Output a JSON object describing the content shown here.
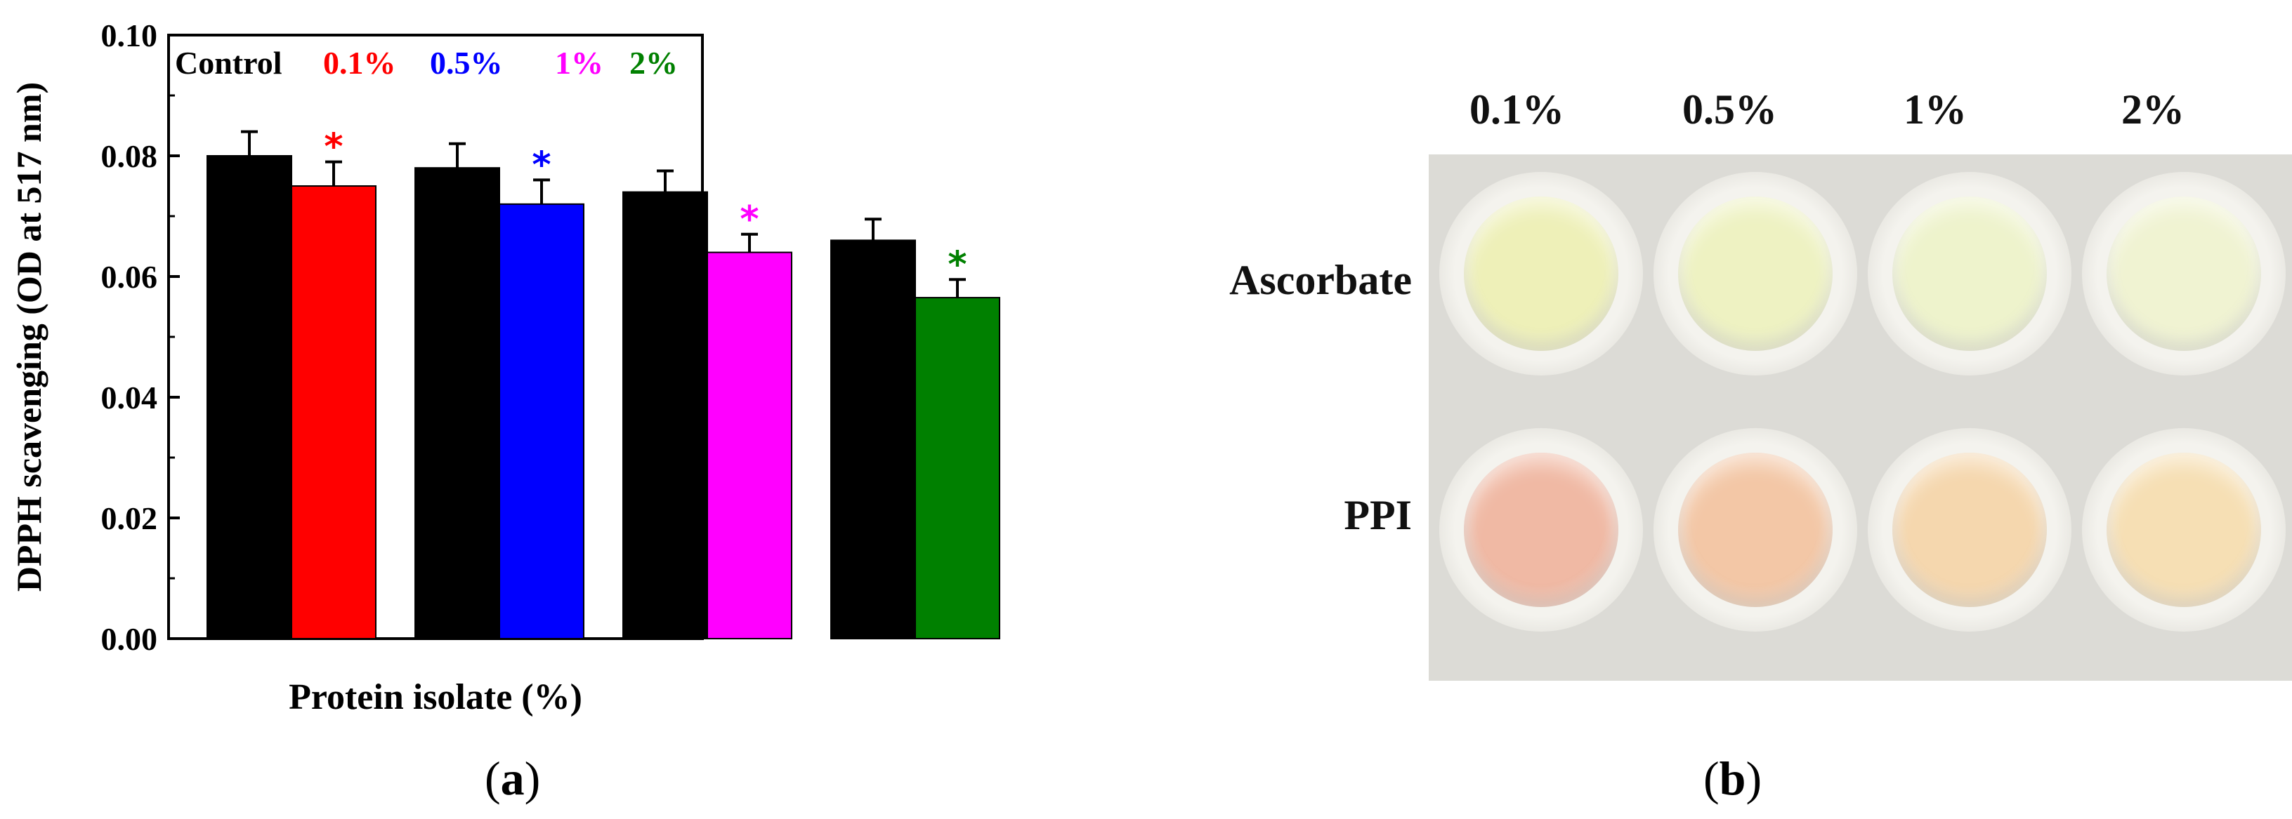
{
  "chart_data": {
    "type": "bar",
    "ylabel": "DPPH scavenging (OD at 517 nm)",
    "xlabel": "Protein isolate (%)",
    "ylim": [
      0,
      0.1
    ],
    "yticks": [
      "0.00",
      "0.02",
      "0.04",
      "0.06",
      "0.08",
      "0.10"
    ],
    "ytick_values": [
      0,
      0.02,
      0.04,
      0.06,
      0.08,
      0.1
    ],
    "legend_placement": "top-left",
    "legend": [
      {
        "label": "Control",
        "color": "#000000"
      },
      {
        "label": "0.1%",
        "color": "#ff0000"
      },
      {
        "label": "0.5%",
        "color": "#0000ff"
      },
      {
        "label": "1%",
        "color": "#ff00ff"
      },
      {
        "label": "2%",
        "color": "#008000"
      }
    ],
    "groups": [
      {
        "control": 0.08,
        "control_err": 0.004,
        "treated": 0.075,
        "treated_err": 0.004,
        "color": "#ff0000",
        "marker": "*"
      },
      {
        "control": 0.078,
        "control_err": 0.004,
        "treated": 0.072,
        "treated_err": 0.004,
        "color": "#0000ff",
        "marker": "*"
      },
      {
        "control": 0.074,
        "control_err": 0.0035,
        "treated": 0.064,
        "treated_err": 0.003,
        "color": "#ff00ff",
        "marker": "*"
      },
      {
        "control": 0.066,
        "control_err": 0.0035,
        "treated": 0.0565,
        "treated_err": 0.003,
        "color": "#008000",
        "marker": "*"
      }
    ]
  },
  "captions": {
    "a": {
      "open": "(",
      "letter": "a",
      "close": ")"
    },
    "b": {
      "open": "(",
      "letter": "b",
      "close": ")"
    }
  },
  "photo": {
    "columns": [
      "0.1%",
      "0.5%",
      "1%",
      "2%"
    ],
    "rows": [
      "Ascorbate",
      "PPI"
    ],
    "ascorbate_colors": [
      "#eef0b8",
      "#eef2c2",
      "#eef3cc",
      "#f0f3d2"
    ],
    "ppi_colors": [
      "#f0b9a4",
      "#f3c7a6",
      "#f5d7ae",
      "#f6dfb4"
    ]
  }
}
